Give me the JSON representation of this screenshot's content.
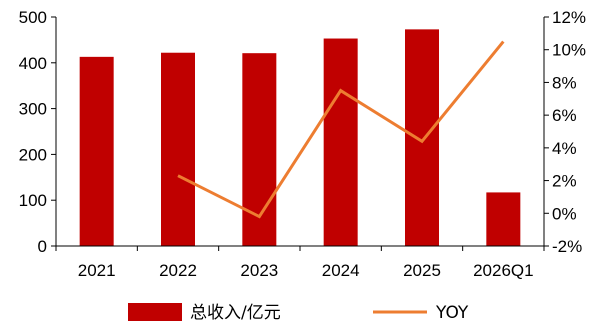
{
  "chart_data": {
    "type": "bar",
    "categories": [
      "2021",
      "2022",
      "2023",
      "2024",
      "2025",
      "2026Q1"
    ],
    "series": [
      {
        "name": "总收入/亿元",
        "type": "bar",
        "axis": "left",
        "color": "#C00000",
        "values": [
          413,
          422,
          421,
          453,
          473,
          117
        ]
      },
      {
        "name": "YOY",
        "type": "line",
        "axis": "right",
        "color": "#ED7D31",
        "values": [
          null,
          2.3,
          -0.2,
          7.5,
          4.4,
          10.5
        ]
      }
    ],
    "y_left": {
      "min": 0,
      "max": 500,
      "ticks": [
        0,
        100,
        200,
        300,
        400,
        500
      ],
      "tick_labels": [
        "0",
        "100",
        "200",
        "300",
        "400",
        "500"
      ]
    },
    "y_right": {
      "min": -2,
      "max": 12,
      "ticks": [
        -2,
        0,
        2,
        4,
        6,
        8,
        10,
        12
      ],
      "tick_labels": [
        "-2%",
        "0%",
        "2%",
        "4%",
        "6%",
        "8%",
        "10%",
        "12%"
      ]
    },
    "grid": false,
    "legend": "bottom"
  }
}
